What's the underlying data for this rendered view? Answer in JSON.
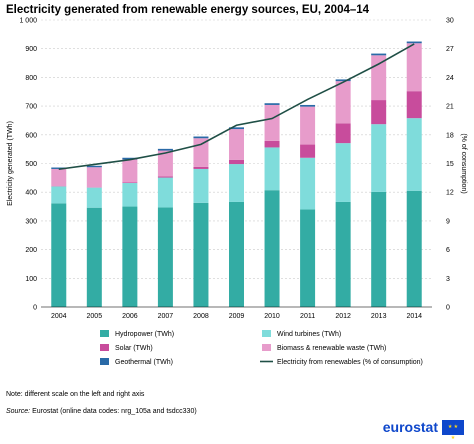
{
  "title": "Electricity generated from renewable energy sources, EU, 2004–14",
  "note": "Note: different scale on the left and right axis",
  "source_prefix": "Source:",
  "source_text": " Eurostat (online data codes: nrg_105a and tsdcc330)",
  "logo_text": "eurostat",
  "colors": {
    "hydropower": "#33aca4",
    "wind": "#7fdcdb",
    "solar": "#c84c9c",
    "biomass": "#e79ccb",
    "geothermal": "#2a6aa7",
    "line": "#1f4f46",
    "grid": "#cccccc"
  },
  "chart_data": {
    "type": "bar",
    "stacked": true,
    "categories": [
      "2004",
      "2005",
      "2006",
      "2007",
      "2008",
      "2009",
      "2010",
      "2011",
      "2012",
      "2013",
      "2014"
    ],
    "series": [
      {
        "name": "Hydropower (TWh)",
        "key": "hydropower",
        "values": [
          361,
          346,
          350,
          347,
          363,
          366,
          407,
          340,
          366,
          401,
          405
        ]
      },
      {
        "name": "Wind turbines (TWh)",
        "key": "wind",
        "values": [
          59,
          70,
          82,
          104,
          118,
          132,
          149,
          180,
          205,
          236,
          253
        ]
      },
      {
        "name": "Solar (TWh)",
        "key": "solar",
        "values": [
          1,
          1,
          2,
          4,
          7,
          15,
          23,
          46,
          69,
          84,
          94
        ]
      },
      {
        "name": "Biomass & renewable waste (TWh)",
        "key": "biomass",
        "values": [
          60,
          70,
          80,
          90,
          100,
          107,
          125,
          132,
          147,
          156,
          167
        ]
      },
      {
        "name": "Geothermal (TWh)",
        "key": "geothermal",
        "values": [
          5,
          5,
          6,
          6,
          6,
          6,
          6,
          6,
          6,
          6,
          6
        ]
      }
    ],
    "line": {
      "name": "Electricity from renewables (% of consumption)",
      "values": [
        14.4,
        14.9,
        15.4,
        16.1,
        17.0,
        19.0,
        19.7,
        21.7,
        23.5,
        25.4,
        27.5
      ]
    },
    "ylabel": "Electricity generated (TWh)",
    "y2label": "(% of consumption)",
    "ylim": [
      0,
      1000
    ],
    "y2lim": [
      0,
      30
    ],
    "yticks": [
      "0",
      "100",
      "200",
      "300",
      "400",
      "500",
      "600",
      "700",
      "800",
      "900",
      "1 000"
    ],
    "y2ticks": [
      "0",
      "3",
      "6",
      "9",
      "12",
      "15",
      "18",
      "21",
      "24",
      "27",
      "30"
    ],
    "grid": true,
    "legend_position": "bottom"
  }
}
